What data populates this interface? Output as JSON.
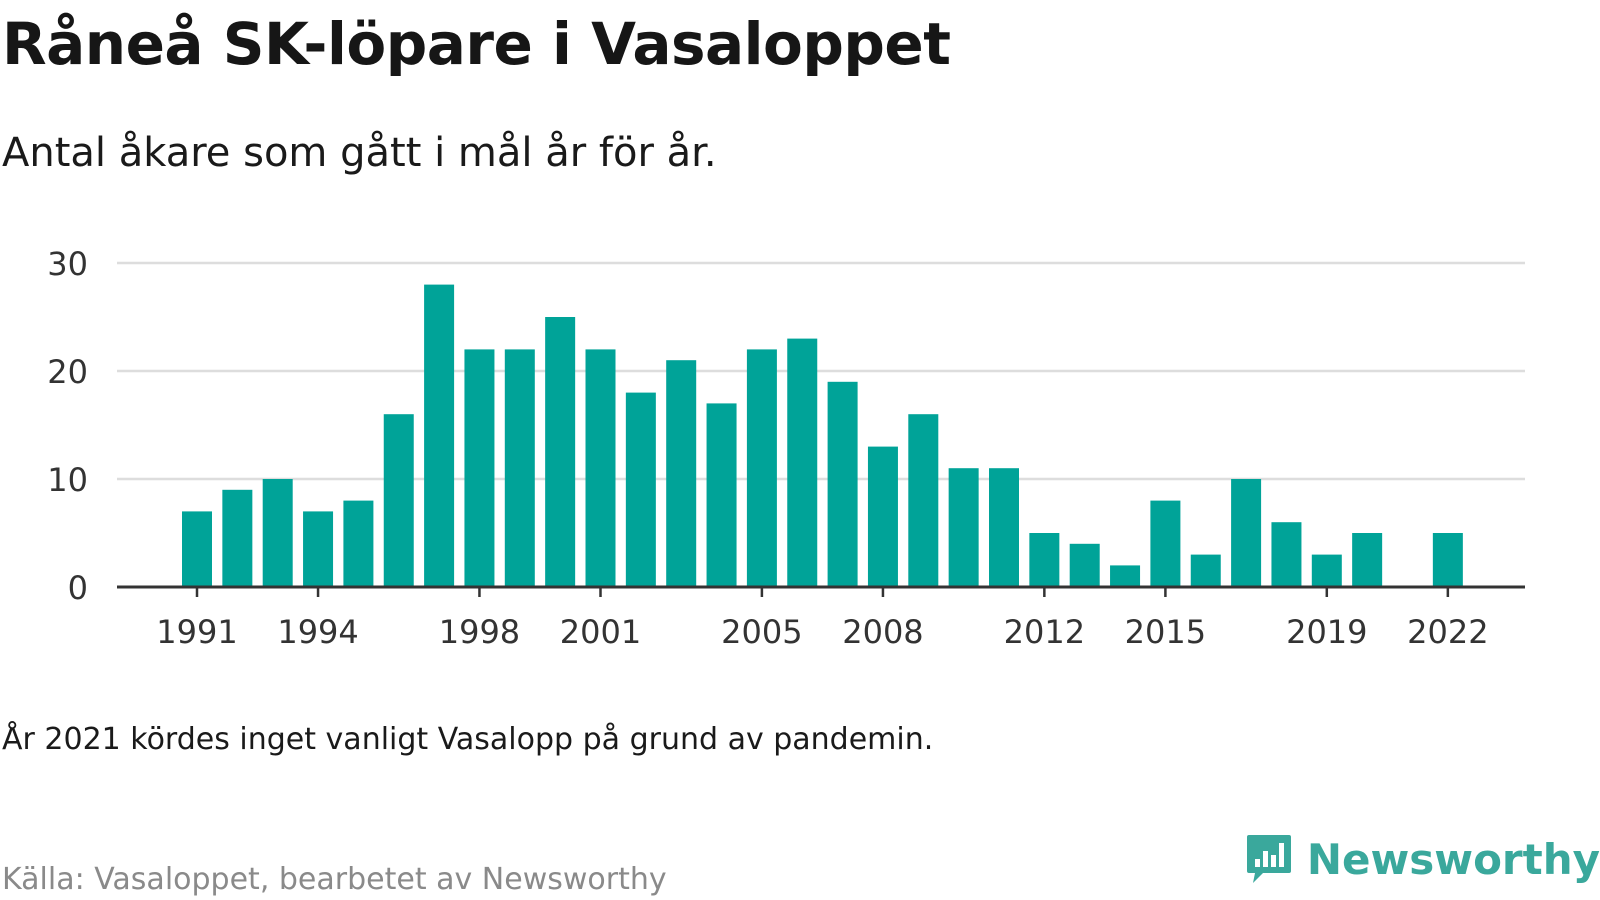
{
  "header": {
    "title": "Råneå SK-löpare i Vasaloppet",
    "subtitle": "Antal åkare som gått i mål år för år."
  },
  "footer": {
    "note": "År 2021 kördes inget vanligt Vasalopp på grund av pandemin.",
    "source": "Källa: Vasaloppet, bearbetet av Newsworthy",
    "logo_text": "Newsworthy",
    "logo_icon": "bar-chart-speech-bubble-icon"
  },
  "colors": {
    "bar": "#00a398",
    "grid": "#dddddd",
    "axis": "#333333",
    "tick_label": "#333333",
    "logo": "#3aa89c"
  },
  "chart_data": {
    "type": "bar",
    "title": "Råneå SK-löpare i Vasaloppet",
    "subtitle": "Antal åkare som gått i mål år för år.",
    "xlabel": "",
    "ylabel": "",
    "categories": [
      1991,
      1992,
      1993,
      1994,
      1995,
      1996,
      1997,
      1998,
      1999,
      2000,
      2001,
      2002,
      2003,
      2004,
      2005,
      2006,
      2007,
      2008,
      2009,
      2010,
      2011,
      2012,
      2013,
      2014,
      2015,
      2016,
      2017,
      2018,
      2019,
      2020,
      2021,
      2022
    ],
    "values": [
      7,
      9,
      10,
      7,
      8,
      16,
      28,
      22,
      22,
      25,
      22,
      18,
      21,
      17,
      22,
      23,
      19,
      13,
      16,
      11,
      11,
      5,
      4,
      2,
      8,
      3,
      10,
      6,
      3,
      5,
      null,
      5
    ],
    "xticks": [
      1991,
      1994,
      1998,
      2001,
      2005,
      2008,
      2012,
      2015,
      2019,
      2022
    ],
    "yticks": [
      0,
      10,
      20,
      30
    ],
    "ylim": [
      0,
      30
    ],
    "grid": true,
    "legend": "none"
  }
}
